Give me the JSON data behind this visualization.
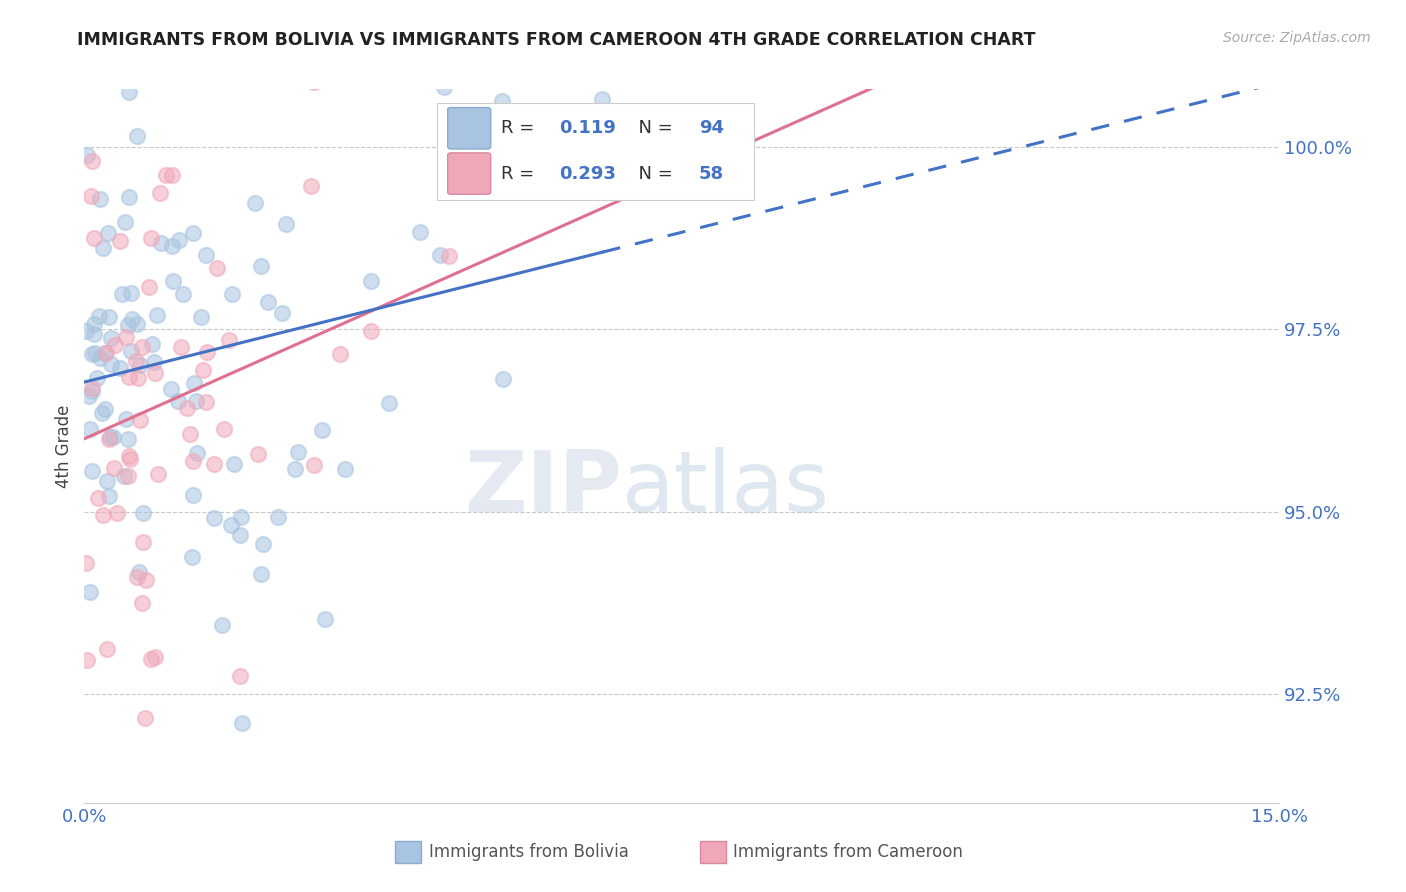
{
  "title": "IMMIGRANTS FROM BOLIVIA VS IMMIGRANTS FROM CAMEROON 4TH GRADE CORRELATION CHART",
  "source_text": "Source: ZipAtlas.com",
  "ylabel": "4th Grade",
  "xlim": [
    0.0,
    15.0
  ],
  "ylim": [
    91.0,
    100.8
  ],
  "yticks": [
    92.5,
    95.0,
    97.5,
    100.0
  ],
  "ytick_labels": [
    "92.5%",
    "95.0%",
    "97.5%",
    "100.0%"
  ],
  "xticks": [
    0.0,
    15.0
  ],
  "xtick_labels": [
    "0.0%",
    "15.0%"
  ],
  "bolivia_color": "#a8c4e0",
  "cameroon_color": "#f0a8b8",
  "bolivia_line_color": "#4472c4",
  "cameroon_line_color": "#e07090",
  "R_bolivia": 0.119,
  "N_bolivia": 94,
  "R_cameroon": 0.293,
  "N_cameroon": 58,
  "watermark_zip": "ZIP",
  "watermark_atlas": "atlas",
  "legend_bolivia_label": "Immigrants from Bolivia",
  "legend_cameroon_label": "Immigrants from Cameroon",
  "background_color": "#ffffff",
  "grid_color": "#c8c8c8",
  "title_color": "#222222",
  "axis_label_color": "#444444",
  "tick_color": "#4472c4",
  "source_color": "#aaaaaa"
}
